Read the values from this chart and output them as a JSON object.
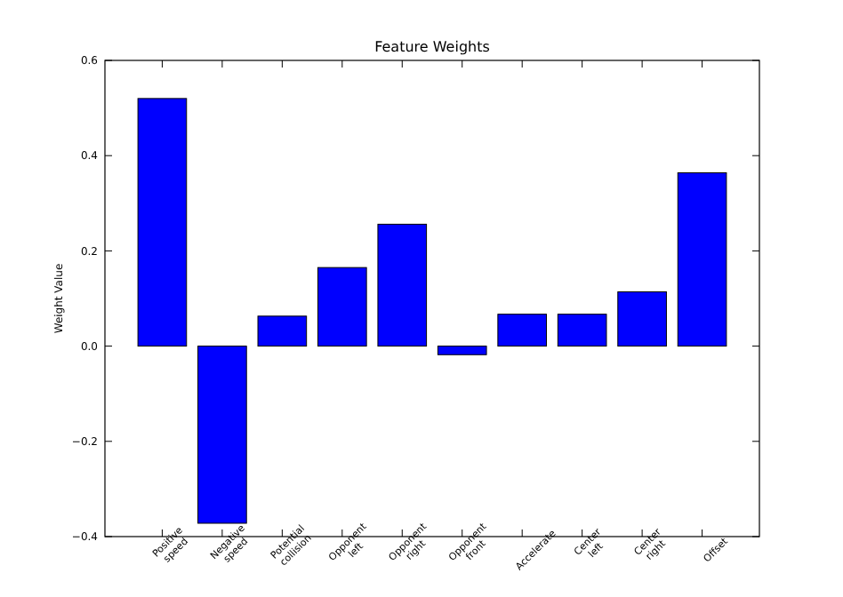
{
  "chart_data": {
    "type": "bar",
    "title": "Feature Weights",
    "ylabel": "Weight Value",
    "categories": [
      "Positive\nspeed",
      "Negative\nspeed",
      "Potential\ncollision",
      "Opponent\nleft",
      "Opponent\nright",
      "Opponent\nfront",
      "Accelerate",
      "Center\nleft",
      "Center\nright",
      "Offset"
    ],
    "values": [
      0.52,
      -0.372,
      0.063,
      0.165,
      0.256,
      -0.018,
      0.067,
      0.067,
      0.114,
      0.364
    ],
    "color": "#0000ff",
    "ylim": [
      -0.4,
      0.6
    ],
    "yticks": [
      {
        "value": -0.4,
        "label": "−0.4"
      },
      {
        "value": -0.2,
        "label": "−0.2"
      },
      {
        "value": 0,
        "label": "0.0"
      },
      {
        "value": 0.2,
        "label": "0.2"
      },
      {
        "value": 0.4,
        "label": "0.4"
      },
      {
        "value": 0.6,
        "label": "0.6"
      }
    ],
    "grid": false
  }
}
